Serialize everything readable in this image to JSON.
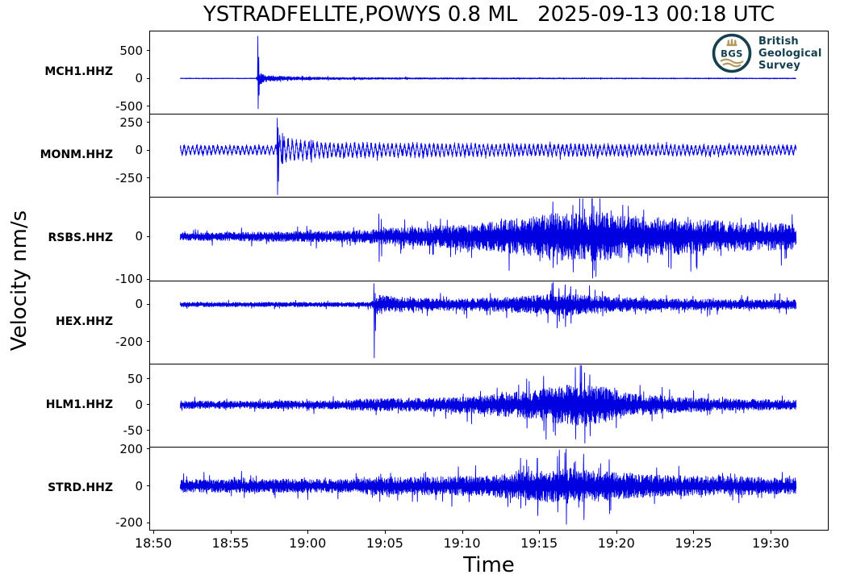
{
  "title": "YSTRADFELLTE,POWYS 0.8 ML   2025-09-13 00:18 UTC",
  "xlabel": "Time",
  "ylabel": "Velocity nm/s",
  "logo": {
    "abbr": "BGS",
    "line1": "British",
    "line2": "Geological",
    "line3": "Survey",
    "navy": "#15404f",
    "gold": "#b49a5e"
  },
  "chart_data": {
    "type": "line",
    "description": "Six-station vertical-component seismograms (velocity nm/s) for the Ystradfellte, Powys 0.8 ML event. ~40 minutes of signal from 18:51.7 to 19:31.7; t is minutes after 18:50.",
    "line_color": "#0000e0",
    "grid": false,
    "xlim_minutes": [
      -0.26,
      43.76
    ],
    "data_window_minutes": [
      1.7,
      41.7
    ],
    "x_ticks": [
      {
        "label": "18:50",
        "t": 0
      },
      {
        "label": "18:55",
        "t": 5
      },
      {
        "label": "19:00",
        "t": 10
      },
      {
        "label": "19:05",
        "t": 15
      },
      {
        "label": "19:10",
        "t": 20
      },
      {
        "label": "19:15",
        "t": 25
      },
      {
        "label": "19:20",
        "t": 30
      },
      {
        "label": "19:25",
        "t": 35
      },
      {
        "label": "19:30",
        "t": 40
      }
    ],
    "traces": [
      {
        "station": "MCH1.HHZ",
        "seed": 11,
        "ylim": [
          -633,
          843
        ],
        "yticks": [
          {
            "label": "500",
            "value": 500
          },
          {
            "label": "0",
            "value": 0
          },
          {
            "label": "-500",
            "value": -500
          }
        ],
        "envelope": [
          [
            1.7,
            6
          ],
          [
            6.6,
            6
          ],
          [
            6.85,
            120
          ],
          [
            7.2,
            70
          ],
          [
            8,
            45
          ],
          [
            9.5,
            30
          ],
          [
            11,
            24
          ],
          [
            13,
            19
          ],
          [
            15,
            16
          ],
          [
            18,
            13
          ],
          [
            22,
            11
          ],
          [
            27,
            9
          ],
          [
            33,
            8
          ],
          [
            41.7,
            7
          ]
        ],
        "spikes": [
          [
            6.74,
            757,
            -543
          ],
          [
            6.79,
            380,
            -300
          ],
          [
            9.6,
            45,
            -40
          ],
          [
            11.3,
            38,
            -35
          ],
          [
            13.0,
            32,
            -30
          ],
          [
            16.4,
            25,
            -22
          ]
        ]
      },
      {
        "station": "MONM.HHZ",
        "seed": 22,
        "ylim": [
          -419,
          319
        ],
        "yticks": [
          {
            "label": "250",
            "value": 250
          },
          {
            "label": "0",
            "value": 0
          },
          {
            "label": "-250",
            "value": -250
          }
        ],
        "periodic": {
          "period": 0.27,
          "frac": 0.78,
          "noise_frac": 0.45
        },
        "envelope": [
          [
            1.7,
            42
          ],
          [
            5,
            40
          ],
          [
            7.9,
            38
          ],
          [
            8.1,
            130
          ],
          [
            8.7,
            95
          ],
          [
            9.6,
            80
          ],
          [
            11,
            68
          ],
          [
            13,
            62
          ],
          [
            16,
            58
          ],
          [
            20,
            56
          ],
          [
            24,
            52
          ],
          [
            28,
            54
          ],
          [
            32,
            48
          ],
          [
            36,
            46
          ],
          [
            40.5,
            42
          ],
          [
            41.7,
            46
          ]
        ],
        "spikes": [
          [
            8.0,
            286,
            -400
          ],
          [
            8.06,
            200,
            -280
          ],
          [
            8.35,
            150,
            -120
          ],
          [
            10.2,
            90,
            -110
          ]
        ]
      },
      {
        "station": "RSBS.HHZ",
        "seed": 33,
        "ylim": [
          -102,
          90
        ],
        "yticks": [
          {
            "label": "0",
            "value": 0
          },
          {
            "label": "-100",
            "value": -100
          }
        ],
        "envelope": [
          [
            1.7,
            9
          ],
          [
            6,
            11
          ],
          [
            10,
            13
          ],
          [
            13.5,
            14
          ],
          [
            14.8,
            20
          ],
          [
            16,
            22
          ],
          [
            18,
            24
          ],
          [
            20,
            30
          ],
          [
            22,
            36
          ],
          [
            23.5,
            44
          ],
          [
            25,
            52
          ],
          [
            26.5,
            58
          ],
          [
            28,
            62
          ],
          [
            29,
            60
          ],
          [
            30.5,
            52
          ],
          [
            32,
            48
          ],
          [
            34,
            44
          ],
          [
            36,
            40
          ],
          [
            38,
            36
          ],
          [
            41.7,
            32
          ]
        ],
        "spikes": [
          [
            14.6,
            52,
            -58
          ],
          [
            14.75,
            40,
            -45
          ],
          [
            25.9,
            80,
            -72
          ],
          [
            27.2,
            72,
            -82
          ],
          [
            28.45,
            88,
            -96
          ],
          [
            28.55,
            70,
            -78
          ],
          [
            30.8,
            70,
            -60
          ]
        ]
      },
      {
        "station": "HEX.HHZ",
        "seed": 44,
        "ylim": [
          -316,
          123
        ],
        "yticks": [
          {
            "label": "0",
            "value": 0
          },
          {
            "label": "-200",
            "value": -200
          }
        ],
        "envelope": [
          [
            1.7,
            13
          ],
          [
            8,
            13
          ],
          [
            14.1,
            13
          ],
          [
            14.5,
            55
          ],
          [
            15.5,
            45
          ],
          [
            17,
            38
          ],
          [
            19,
            35
          ],
          [
            21,
            36
          ],
          [
            23,
            42
          ],
          [
            24.5,
            50
          ],
          [
            25.5,
            56
          ],
          [
            26.5,
            64
          ],
          [
            27.5,
            62
          ],
          [
            28.5,
            52
          ],
          [
            30,
            42
          ],
          [
            32,
            36
          ],
          [
            34,
            32
          ],
          [
            37,
            29
          ],
          [
            41.7,
            26
          ]
        ],
        "spikes": [
          [
            14.27,
            111,
            -285
          ],
          [
            14.35,
            60,
            -140
          ],
          [
            26.3,
            85,
            -90
          ],
          [
            26.7,
            105,
            -118
          ],
          [
            27.05,
            95,
            -100
          ]
        ]
      },
      {
        "station": "HLM1.HHZ",
        "seed": 55,
        "ylim": [
          -81,
          78
        ],
        "yticks": [
          {
            "label": "50",
            "value": 50
          },
          {
            "label": "0",
            "value": 0
          },
          {
            "label": "-50",
            "value": -50
          }
        ],
        "envelope": [
          [
            1.7,
            8
          ],
          [
            6,
            8
          ],
          [
            12,
            9
          ],
          [
            14,
            13
          ],
          [
            16,
            13
          ],
          [
            18,
            14
          ],
          [
            20,
            16
          ],
          [
            22,
            21
          ],
          [
            23.5,
            27
          ],
          [
            25,
            32
          ],
          [
            26,
            37
          ],
          [
            27,
            42
          ],
          [
            28,
            44
          ],
          [
            29,
            38
          ],
          [
            30,
            30
          ],
          [
            31,
            23
          ],
          [
            32.5,
            19
          ],
          [
            34,
            16
          ],
          [
            36,
            13
          ],
          [
            38,
            12
          ],
          [
            41.7,
            10
          ]
        ],
        "spikes": [
          [
            24.2,
            50,
            -45
          ],
          [
            25.3,
            55,
            -50
          ],
          [
            27.35,
            72,
            -66
          ],
          [
            27.95,
            62,
            -74
          ],
          [
            28.3,
            58,
            -60
          ]
        ]
      },
      {
        "station": "STRD.HHZ",
        "seed": 66,
        "ylim": [
          -237,
          208
        ],
        "yticks": [
          {
            "label": "200",
            "value": 200
          },
          {
            "label": "0",
            "value": 0
          },
          {
            "label": "-200",
            "value": -200
          }
        ],
        "envelope": [
          [
            1.7,
            36
          ],
          [
            5,
            38
          ],
          [
            8,
            40
          ],
          [
            11,
            38
          ],
          [
            13.4,
            40
          ],
          [
            14.3,
            56
          ],
          [
            16,
            50
          ],
          [
            18,
            52
          ],
          [
            20,
            56
          ],
          [
            22,
            62
          ],
          [
            23.5,
            76
          ],
          [
            25,
            88
          ],
          [
            26,
            96
          ],
          [
            27,
            102
          ],
          [
            28,
            96
          ],
          [
            29,
            86
          ],
          [
            30,
            76
          ],
          [
            31.5,
            66
          ],
          [
            33,
            62
          ],
          [
            35,
            58
          ],
          [
            37,
            56
          ],
          [
            39,
            52
          ],
          [
            41.7,
            46
          ]
        ],
        "spikes": [
          [
            23.8,
            150,
            -120
          ],
          [
            24.9,
            150,
            -160
          ],
          [
            26.2,
            160,
            -140
          ],
          [
            26.75,
            200,
            -207
          ],
          [
            27.9,
            172,
            -182
          ],
          [
            29.55,
            142,
            -150
          ]
        ]
      }
    ]
  }
}
